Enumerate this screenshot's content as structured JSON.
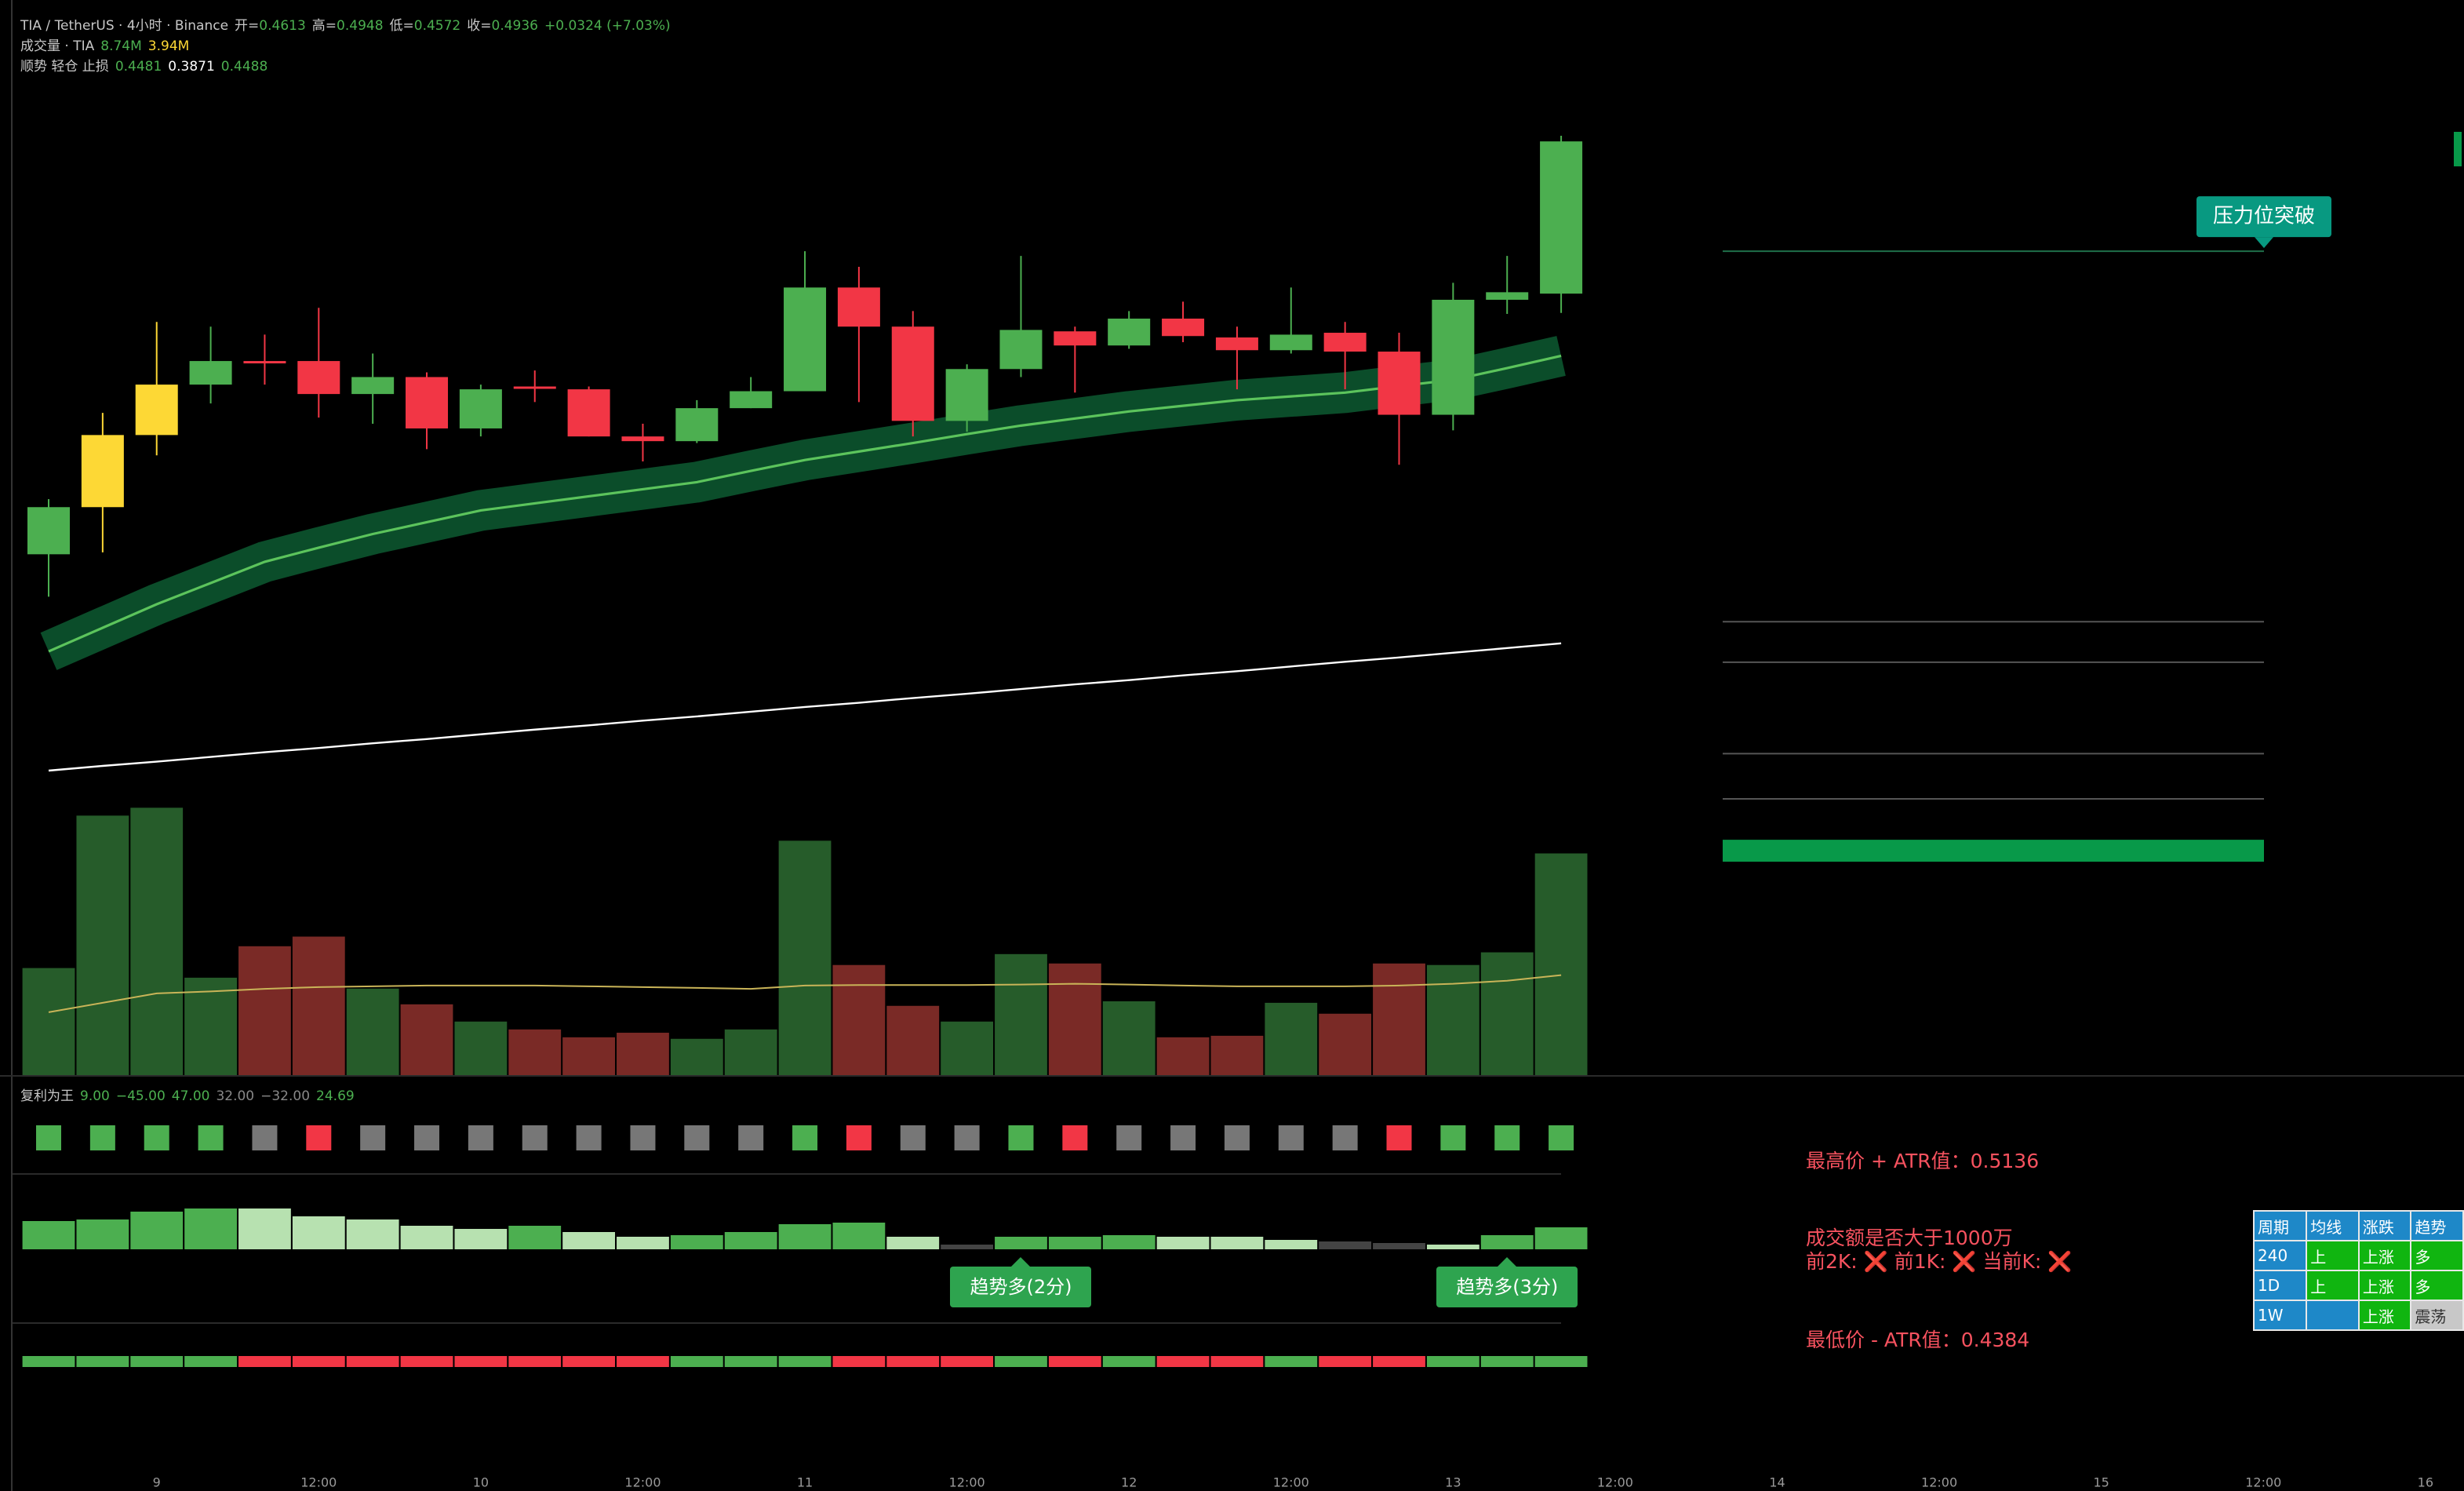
{
  "header": {
    "symbol": "TIA / TetherUS · 4小时 · Binance",
    "ohlc": [
      {
        "label": "开=",
        "value": "0.4613"
      },
      {
        "label": "高=",
        "value": "0.4948"
      },
      {
        "label": "低=",
        "value": "0.4572"
      },
      {
        "label": "收=",
        "value": "0.4936"
      }
    ],
    "change": "+0.0324 (+7.03%)"
  },
  "volume_legend": {
    "label": "成交量 · TIA",
    "values": [
      "8.74M",
      "3.94M"
    ],
    "colors": [
      "#4caf50",
      "#fdd835"
    ]
  },
  "trend_legend": {
    "label": "顺势 轻仓 止损",
    "values": [
      "0.4481",
      "0.3871",
      "0.4488"
    ],
    "colors": [
      "#4caf50",
      "#ffffff",
      "#4caf50"
    ]
  },
  "chart_data": {
    "type": "candlestick",
    "ylim": [
      0.2955,
      0.5236
    ],
    "open": [
      0.406,
      0.416,
      0.4313,
      0.442,
      0.447,
      0.447,
      0.44,
      0.4436,
      0.4327,
      0.4416,
      0.441,
      0.431,
      0.43,
      0.437,
      0.4406,
      0.4626,
      0.4543,
      0.4343,
      0.4453,
      0.4533,
      0.4503,
      0.456,
      0.452,
      0.4493,
      0.453,
      0.449,
      0.4356,
      0.46,
      0.4613
    ],
    "high": [
      0.4177,
      0.436,
      0.4553,
      0.4543,
      0.4526,
      0.4583,
      0.4486,
      0.4446,
      0.442,
      0.445,
      0.4416,
      0.4337,
      0.4387,
      0.4436,
      0.4703,
      0.467,
      0.4576,
      0.4463,
      0.4693,
      0.4543,
      0.4576,
      0.4596,
      0.4543,
      0.4626,
      0.4553,
      0.453,
      0.4636,
      0.4693,
      0.4948
    ],
    "low": [
      0.397,
      0.4064,
      0.427,
      0.438,
      0.442,
      0.435,
      0.4337,
      0.4283,
      0.431,
      0.4383,
      0.431,
      0.4257,
      0.4296,
      0.437,
      0.4406,
      0.4383,
      0.431,
      0.432,
      0.4436,
      0.4403,
      0.4496,
      0.451,
      0.441,
      0.4486,
      0.441,
      0.425,
      0.4323,
      0.457,
      0.4572
    ],
    "close": [
      0.416,
      0.4313,
      0.442,
      0.447,
      0.4468,
      0.44,
      0.4436,
      0.4327,
      0.441,
      0.4413,
      0.431,
      0.43,
      0.437,
      0.4406,
      0.4626,
      0.4543,
      0.4343,
      0.4453,
      0.4536,
      0.4503,
      0.456,
      0.4523,
      0.4493,
      0.4526,
      0.449,
      0.4356,
      0.46,
      0.4616,
      0.4936
    ],
    "colors": [
      "#4caf50",
      "#fdd835",
      "#fdd835",
      "#4caf50",
      "#f23645",
      "#f23645",
      "#4caf50",
      "#f23645",
      "#4caf50",
      "#f23645",
      "#f23645",
      "#f23645",
      "#4caf50",
      "#4caf50",
      "#4caf50",
      "#f23645",
      "#f23645",
      "#4caf50",
      "#4caf50",
      "#f23645",
      "#4caf50",
      "#f23645",
      "#f23645",
      "#4caf50",
      "#f23645",
      "#f23645",
      "#4caf50",
      "#4caf50",
      "#4caf50"
    ],
    "lines": [
      {
        "color": "#ffffff",
        "values": [
          0.3601,
          0.3611,
          0.362,
          0.363,
          0.364,
          0.3649,
          0.3659,
          0.3668,
          0.3678,
          0.3688,
          0.3697,
          0.3707,
          0.3716,
          0.3726,
          0.3736,
          0.3745,
          0.3755,
          0.3764,
          0.3774,
          0.3784,
          0.3793,
          0.3803,
          0.3812,
          0.3822,
          0.3832,
          0.3841,
          0.3851,
          0.3861,
          0.3871
        ]
      },
      {
        "color": "#5cc45c",
        "values": [
          0.3854,
          0.3904,
          0.3954,
          0.3999,
          0.4044,
          0.4074,
          0.4103,
          0.4128,
          0.4153,
          0.4168,
          0.4183,
          0.4198,
          0.4213,
          0.4237,
          0.426,
          0.4278,
          0.4296,
          0.4315,
          0.4333,
          0.4348,
          0.4363,
          0.4375,
          0.4387,
          0.4395,
          0.4403,
          0.4417,
          0.443,
          0.4455,
          0.4481
        ]
      }
    ],
    "levels": [
      0.4703,
      0.3917,
      0.3831,
      0.3637,
      0.3541,
      0.3431
    ],
    "level_colors": [
      "#1f6f4a",
      "#555555",
      "#555555",
      "#555555",
      "#555555",
      "#089949"
    ],
    "level_label": "压力位突破",
    "volume": {
      "vlim": [
        0,
        11.2
      ],
      "values": [
        4.22,
        10.23,
        10.54,
        3.84,
        5.08,
        5.46,
        3.41,
        2.79,
        2.11,
        1.8,
        1.49,
        1.67,
        1.43,
        1.8,
        9.24,
        4.34,
        2.73,
        2.11,
        4.77,
        4.4,
        2.91,
        1.49,
        1.55,
        2.85,
        2.42,
        4.4,
        4.34,
        4.84,
        8.74
      ],
      "ma": [
        2.48,
        2.85,
        3.22,
        3.3,
        3.4,
        3.47,
        3.5,
        3.53,
        3.53,
        3.53,
        3.5,
        3.47,
        3.44,
        3.4,
        3.53,
        3.55,
        3.55,
        3.55,
        3.57,
        3.6,
        3.57,
        3.53,
        3.5,
        3.5,
        3.5,
        3.53,
        3.6,
        3.72,
        3.94
      ],
      "up_color": "#265c2a",
      "down_color": "#7a2a26",
      "ma_color": "#c9b458"
    },
    "time_labels": [
      "9",
      "12:00",
      "10",
      "12:00",
      "11",
      "12:00",
      "12",
      "12:00",
      "13",
      "12:00",
      "14",
      "12:00",
      "15",
      "12:00",
      "16"
    ]
  },
  "indicator": {
    "title": "复利为王",
    "values": [
      "9.00",
      "−45.00",
      "47.00",
      "32.00",
      "−32.00",
      "24.69"
    ],
    "value_colors": [
      "#4caf50",
      "#4caf50",
      "#4caf50",
      "#888888",
      "#888888",
      "#4caf50"
    ],
    "signal_colors": [
      "#4caf50",
      "#4caf50",
      "#4caf50",
      "#4caf50",
      "#777777",
      "#f23645",
      "#777777",
      "#777777",
      "#777777",
      "#777777",
      "#777777",
      "#777777",
      "#777777",
      "#777777",
      "#4caf50",
      "#f23645",
      "#777777",
      "#777777",
      "#4caf50",
      "#f23645",
      "#777777",
      "#777777",
      "#777777",
      "#777777",
      "#777777",
      "#f23645",
      "#4caf50",
      "#4caf50",
      "#4caf50"
    ],
    "histogram": {
      "ylim": [
        0,
        30
      ],
      "values": [
        18,
        19,
        24,
        26,
        26,
        21,
        19,
        15,
        13,
        15,
        11,
        8,
        9,
        11,
        16,
        17,
        8,
        3,
        8,
        8,
        9,
        8,
        8,
        6,
        5,
        4,
        3,
        9,
        14
      ],
      "colors": [
        "#4caf50",
        "#4caf50",
        "#4caf50",
        "#4caf50",
        "#b7e1b0",
        "#b7e1b0",
        "#b7e1b0",
        "#b7e1b0",
        "#b7e1b0",
        "#4caf50",
        "#b7e1b0",
        "#b7e1b0",
        "#4caf50",
        "#4caf50",
        "#4caf50",
        "#4caf50",
        "#b7e1b0",
        "#444444",
        "#4caf50",
        "#4caf50",
        "#4caf50",
        "#b7e1b0",
        "#b7e1b0",
        "#b7e1b0",
        "#444444",
        "#444444",
        "#b7e1b0",
        "#4caf50",
        "#4caf50"
      ]
    },
    "strip_colors": [
      "#4caf50",
      "#4caf50",
      "#4caf50",
      "#4caf50",
      "#f23645",
      "#f23645",
      "#f23645",
      "#f23645",
      "#f23645",
      "#f23645",
      "#f23645",
      "#f23645",
      "#4caf50",
      "#4caf50",
      "#4caf50",
      "#f23645",
      "#f23645",
      "#f23645",
      "#4caf50",
      "#f23645",
      "#4caf50",
      "#f23645",
      "#f23645",
      "#4caf50",
      "#f23645",
      "#f23645",
      "#4caf50",
      "#4caf50",
      "#4caf50"
    ],
    "badges": [
      "趋势多(2分)",
      "趋势多(3分)"
    ]
  },
  "info": {
    "atr_high": "最高价 + ATR值：0.5136",
    "volume_check": "成交额是否大于1000万",
    "checks": "前2K: ❌ 前1K: ❌ 当前K: ❌",
    "atr_low": "最低价 - ATR值：0.4384"
  },
  "table": {
    "header": [
      "周期",
      "均线",
      "涨跌",
      "趋势"
    ],
    "rows": [
      [
        "240",
        "上",
        "上涨",
        "多"
      ],
      [
        "1D",
        "上",
        "上涨",
        "多"
      ],
      [
        "1W",
        null,
        "上涨",
        "震荡"
      ]
    ],
    "cell_colors": [
      [
        "#1e88c8",
        "#10b510",
        "#10b510",
        "#10b510"
      ],
      [
        "#1e88c8",
        "#10b510",
        "#10b510",
        "#10b510"
      ],
      [
        "#1e88c8",
        "#1e88c8",
        "#10b510",
        "#c8c8c8"
      ]
    ]
  }
}
